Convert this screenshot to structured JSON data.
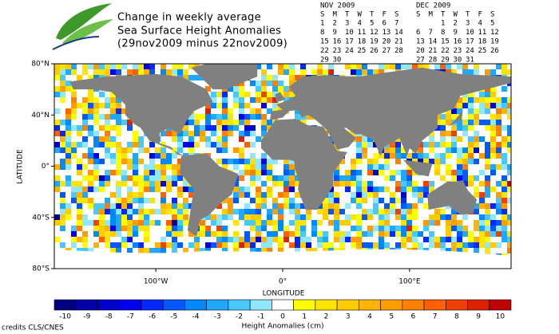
{
  "header": {
    "title_lines": [
      "Change in weekly average",
      "Sea Surface Height Anomalies",
      "(29nov2009 minus 22nov2009)"
    ]
  },
  "calendars": [
    {
      "month": "NOV 2009",
      "weekdays": [
        "S",
        "M",
        "T",
        "W",
        "T",
        "F",
        "S"
      ],
      "weeks": [
        [
          1,
          2,
          3,
          4,
          5,
          6,
          7
        ],
        [
          8,
          9,
          10,
          11,
          12,
          13,
          14
        ],
        [
          15,
          16,
          17,
          18,
          19,
          20,
          21
        ],
        [
          22,
          23,
          24,
          25,
          26,
          27,
          28
        ],
        [
          29,
          30,
          null,
          null,
          null,
          null,
          null
        ]
      ],
      "highlighted_weeks": [
        3,
        4
      ]
    },
    {
      "month": "DEC 2009",
      "weekdays": [
        "S",
        "M",
        "T",
        "W",
        "T",
        "F",
        "S"
      ],
      "weeks": [
        [
          null,
          null,
          1,
          2,
          3,
          4,
          5
        ],
        [
          6,
          7,
          8,
          9,
          10,
          11,
          12
        ],
        [
          13,
          14,
          15,
          16,
          17,
          18,
          19
        ],
        [
          20,
          21,
          22,
          23,
          24,
          25,
          26
        ],
        [
          27,
          28,
          29,
          30,
          31,
          null,
          null
        ]
      ],
      "highlighted_weeks": [
        0
      ]
    }
  ],
  "highlight_color": "#2b2ba8",
  "map": {
    "xlabel": "LONGITUDE",
    "ylabel": "LATITUDE",
    "xlim": [
      -180,
      180
    ],
    "ylim": [
      -80,
      80
    ],
    "xticks": [
      {
        "value": -100,
        "label": "100°W"
      },
      {
        "value": 0,
        "label": "0°"
      },
      {
        "value": 100,
        "label": "100°E"
      }
    ],
    "yticks": [
      {
        "value": 80,
        "label": "80°N"
      },
      {
        "value": 40,
        "label": "40°N"
      },
      {
        "value": 0,
        "label": "0°"
      },
      {
        "value": -40,
        "label": "40°S"
      },
      {
        "value": -80,
        "label": "80°S"
      }
    ],
    "land_color": "#808080"
  },
  "colorbar": {
    "values": [
      -10,
      -9,
      -8,
      -7,
      -6,
      -5,
      -4,
      -3,
      -2,
      -1,
      0,
      1,
      2,
      3,
      4,
      5,
      6,
      7,
      8,
      9,
      10
    ],
    "colors": [
      "#000080",
      "#0000a8",
      "#0000cc",
      "#0000ee",
      "#0028ff",
      "#0058ff",
      "#0088ff",
      "#20a8ff",
      "#48c8ff",
      "#90e8ff",
      "#ffffff",
      "#ffff00",
      "#ffe400",
      "#ffcc00",
      "#ffb400",
      "#ff9c00",
      "#ff8000",
      "#ff6000",
      "#f04000",
      "#dc2000",
      "#c00000"
    ],
    "label": "Height Anomalies (cm)"
  },
  "credits": "credits CLS/CNES"
}
